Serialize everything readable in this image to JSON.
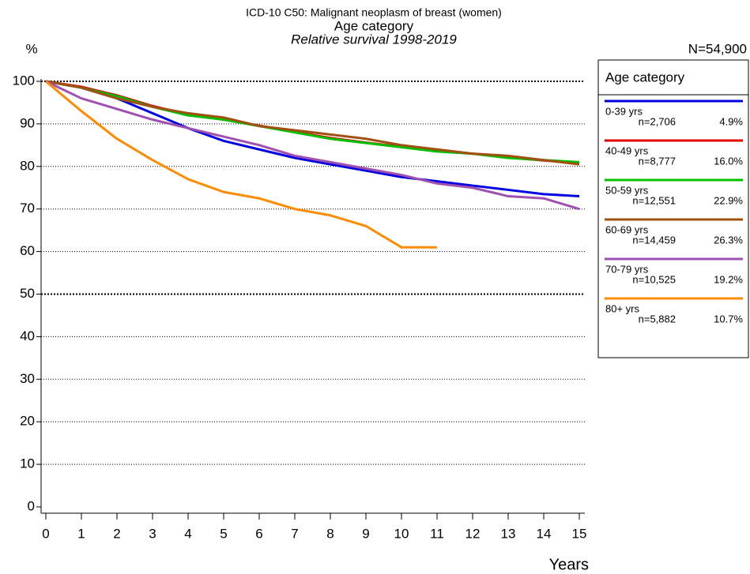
{
  "chart_data": {
    "type": "line",
    "title": "ICD-10 C50: Malignant neoplasm of breast (women)",
    "subtitle": "Age category",
    "subtitle2": "Relative survival 1998-2019",
    "y_label": "%",
    "x_label": "Years",
    "total_label": "N=54,900",
    "legend_title": "Age category",
    "x": [
      0,
      1,
      2,
      3,
      4,
      5,
      6,
      7,
      8,
      9,
      10,
      11,
      12,
      13,
      14,
      15
    ],
    "xlim": [
      0,
      15
    ],
    "xticks": [
      0,
      1,
      2,
      3,
      4,
      5,
      6,
      7,
      8,
      9,
      10,
      11,
      12,
      13,
      14,
      15
    ],
    "ylim": [
      0,
      100
    ],
    "yticks": [
      0,
      10,
      20,
      30,
      40,
      50,
      60,
      70,
      80,
      90,
      100
    ],
    "grid": true,
    "emphasized_gridlines": [
      50,
      100
    ],
    "series": [
      {
        "name": "0-39 yrs",
        "n_label": "n=2,706",
        "share_label": "4.9%",
        "color": "#0000e0",
        "values": [
          100,
          98.5,
          96,
          92.5,
          89,
          86,
          84,
          82,
          80.5,
          79,
          77.5,
          76.5,
          75.5,
          74.5,
          73.5,
          73
        ]
      },
      {
        "name": "40-49 yrs",
        "n_label": "n=8,777",
        "share_label": "16.0%",
        "color": "#e00000",
        "values": [
          100,
          98.7,
          96.7,
          94.2,
          92.2,
          91,
          89.6,
          88.1,
          86.7,
          85.6,
          84.6,
          83.6,
          83,
          82.1,
          81.4,
          80.8
        ]
      },
      {
        "name": "50-59 yrs",
        "n_label": "n=12,551",
        "share_label": "22.9%",
        "color": "#00c000",
        "values": [
          100,
          98.5,
          96.5,
          94,
          92,
          91,
          89.5,
          88,
          86.5,
          85.5,
          84.5,
          83.5,
          83,
          82,
          81.5,
          81
        ]
      },
      {
        "name": "60-69 yrs",
        "n_label": "n=14,459",
        "share_label": "26.3%",
        "color": "#a05010",
        "values": [
          100,
          98.5,
          96,
          94,
          92.5,
          91.5,
          89.5,
          88.5,
          87.5,
          86.5,
          85,
          84,
          83,
          82.5,
          81.5,
          80.5
        ]
      },
      {
        "name": "70-79 yrs",
        "n_label": "n=10,525",
        "share_label": "19.2%",
        "color": "#a050b0",
        "values": [
          100,
          96,
          93.5,
          91,
          89,
          87,
          85,
          82.5,
          81,
          79.5,
          78,
          76,
          75,
          73,
          72.5,
          70
        ]
      },
      {
        "name": "80+ yrs",
        "n_label": "n=5,882",
        "share_label": "10.7%",
        "color": "#ff8c00",
        "values": [
          100,
          93,
          86.5,
          81.5,
          77,
          74,
          72.5,
          70,
          68.5,
          66,
          61,
          61,
          null,
          null,
          null,
          null
        ]
      }
    ]
  }
}
